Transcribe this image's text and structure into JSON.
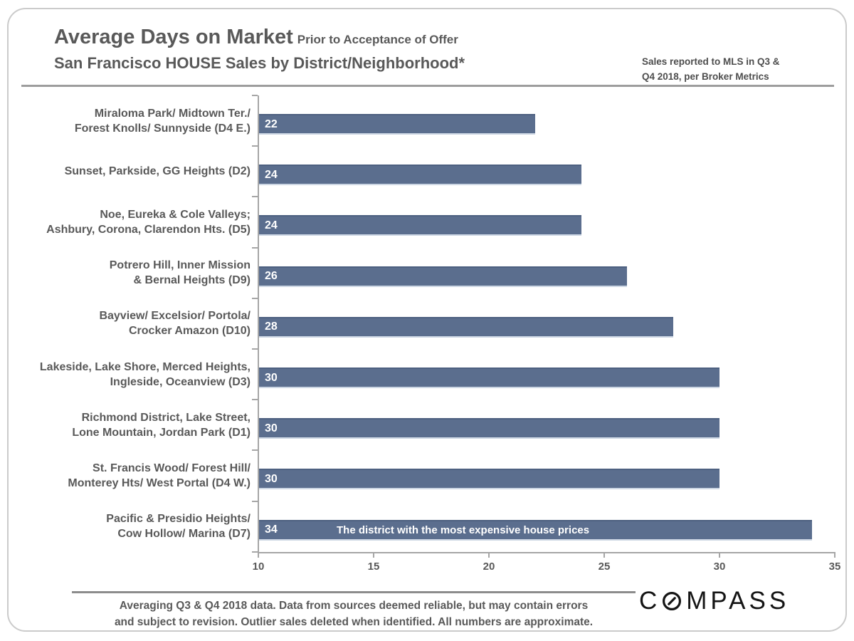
{
  "header": {
    "title_main": "Average Days on Market",
    "title_sub": "Prior to Acceptance of Offer",
    "title_line2": "San Francisco HOUSE Sales by District/Neighborhood*",
    "note_line1": "Sales reported to MLS in Q3 &",
    "note_line2": "Q4 2018, per Broker Metrics"
  },
  "chart_data": {
    "type": "bar",
    "orientation": "horizontal",
    "title": "Average Days on Market Prior to Acceptance of Offer — San Francisco HOUSE Sales by District/Neighborhood*",
    "xlabel": "",
    "ylabel": "",
    "xlim": [
      10,
      35
    ],
    "x_ticks": [
      10,
      15,
      20,
      25,
      30,
      35
    ],
    "grid": false,
    "bar_color": "#5b6e8e",
    "value_label_color": "#ffffff",
    "categories": [
      "Miraloma Park/ Midtown Ter./ Forest Knolls/ Sunnyside (D4 E.)",
      "Sunset, Parkside, GG Heights (D2)",
      "Noe, Eureka & Cole Valleys; Ashbury, Corona, Clarendon Hts. (D5)",
      "Potrero Hill, Inner Mission & Bernal Heights (D9)",
      "Bayview/ Excelsior/ Portola/ Crocker Amazon (D10)",
      "Lakeside, Lake Shore, Merced Heights, Ingleside, Oceanview (D3)",
      "Richmond District, Lake Street, Lone Mountain, Jordan Park (D1)",
      "St. Francis Wood/ Forest Hill/ Monterey Hts/ West Portal (D4 W.)",
      "Pacific & Presidio Heights/ Cow Hollow/ Marina (D7)"
    ],
    "label_lines": [
      [
        "Miraloma Park/ Midtown Ter./",
        "Forest Knolls/ Sunnyside (D4 E.)"
      ],
      [
        "Sunset, Parkside, GG Heights (D2)"
      ],
      [
        "Noe, Eureka & Cole Valleys;",
        "Ashbury, Corona, Clarendon Hts. (D5)"
      ],
      [
        "Potrero Hill, Inner Mission",
        "& Bernal Heights (D9)"
      ],
      [
        "Bayview/ Excelsior/ Portola/",
        "Crocker Amazon (D10)"
      ],
      [
        "Lakeside, Lake Shore, Merced Heights,",
        "Ingleside, Oceanview (D3)"
      ],
      [
        "Richmond District, Lake Street,",
        "Lone Mountain, Jordan Park (D1)"
      ],
      [
        "St. Francis Wood/ Forest Hill/",
        "Monterey Hts/ West Portal (D4 W.)"
      ],
      [
        "Pacific & Presidio Heights/",
        "Cow Hollow/ Marina (D7)"
      ]
    ],
    "values": [
      22,
      24,
      24,
      26,
      28,
      30,
      30,
      30,
      34
    ],
    "annotation": {
      "bar_index": 8,
      "text": "The district with the most expensive house prices"
    }
  },
  "footer": {
    "line1": "Averaging Q3 & Q4 2018 data. Data from sources deemed reliable, but may contain errors",
    "line2": "and subject to revision. Outlier sales deleted when identified. All numbers are approximate.",
    "logo_text_start": "C",
    "logo_text_end": "MPASS"
  },
  "colors": {
    "title": "#595959",
    "bar_fill": "#5b6e8e",
    "bar_edge_top": "#4d6080",
    "bar_edge_bottom": "#ccd6e3",
    "axis": "#a6a6a6",
    "rule": "#9d9d9d",
    "frame_border": "#cbcbcb",
    "logo": "#151515"
  }
}
